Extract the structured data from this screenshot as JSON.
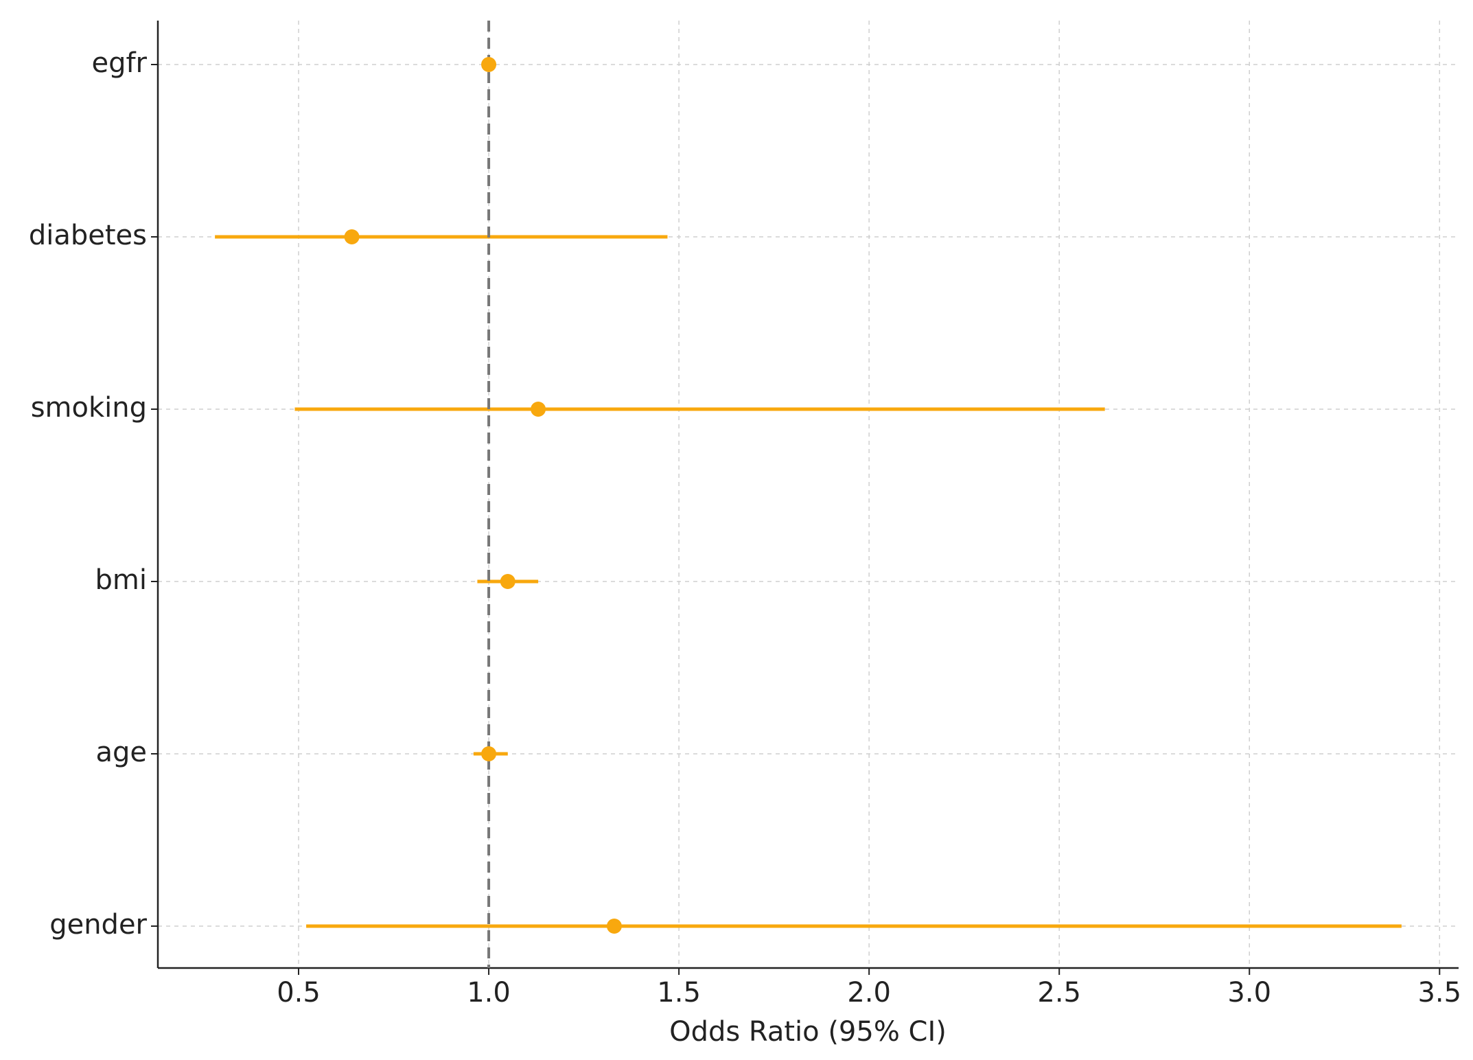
{
  "chart_data": {
    "type": "forest",
    "x_label": "Odds Ratio (95% CI)",
    "categories": [
      "egfr",
      "diabetes",
      "smoking",
      "bmi",
      "age",
      "gender"
    ],
    "values": [
      1.0,
      0.64,
      1.13,
      1.05,
      1.0,
      1.33
    ],
    "ci_lower": [
      0.99,
      0.28,
      0.49,
      0.97,
      0.96,
      0.52
    ],
    "ci_upper": [
      1.01,
      1.47,
      2.62,
      1.13,
      1.05,
      3.4
    ],
    "color": "#f8a80e",
    "reference_line": 1,
    "xlim": [
      0.13,
      3.55
    ],
    "xticks": [
      0.5,
      {
        "value": 1,
        "label": "1.0"
      },
      1.5,
      {
        "value": 2,
        "label": "2.0"
      },
      2.5,
      {
        "value": 3,
        "label": "3.0"
      },
      3.5
    ],
    "grid": true
  }
}
